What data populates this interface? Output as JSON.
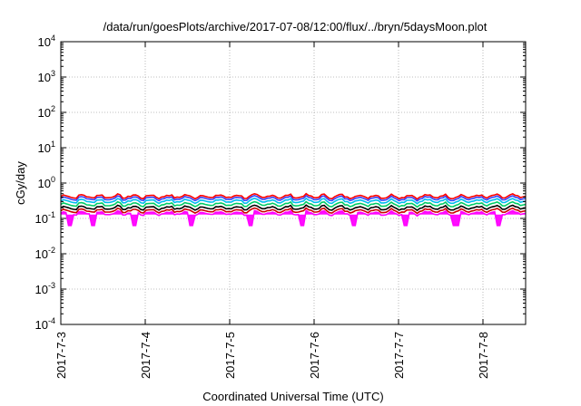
{
  "chart_data": {
    "type": "line",
    "title": "/data/run/goesPlots/archive/2017-07-08/12:00/flux/../bryn/5daysMoon.plot",
    "xlabel": "Coordinated Universal Time (UTC)",
    "ylabel": "cGy/day",
    "y_scale": "log",
    "ylim": [
      0.0001,
      10000
    ],
    "y_ticks": [
      {
        "value": 0.0001,
        "base": "10",
        "exp": "-4"
      },
      {
        "value": 0.001,
        "base": "10",
        "exp": "-3"
      },
      {
        "value": 0.01,
        "base": "10",
        "exp": "-2"
      },
      {
        "value": 0.1,
        "base": "10",
        "exp": "-1"
      },
      {
        "value": 1,
        "base": "10",
        "exp": "0"
      },
      {
        "value": 10,
        "base": "10",
        "exp": "1"
      },
      {
        "value": 100,
        "base": "10",
        "exp": "2"
      },
      {
        "value": 1000,
        "base": "10",
        "exp": "3"
      },
      {
        "value": 10000,
        "base": "10",
        "exp": "4"
      }
    ],
    "x_range": [
      "2017-07-03",
      "2017-07-08 12:00"
    ],
    "x_ticks": [
      "2017-7-3",
      "2017-7-4",
      "2017-7-5",
      "2017-7-6",
      "2017-7-7",
      "2017-7-8"
    ],
    "grid": true,
    "series": [
      {
        "color": "#ff00ff",
        "level": 0.14,
        "fill": true
      },
      {
        "color": "#cc0000",
        "level": 0.165
      },
      {
        "color": "#000000",
        "level": 0.2
      },
      {
        "color": "#00cc66",
        "level": 0.25
      },
      {
        "color": "#00bbee",
        "level": 0.31
      },
      {
        "color": "#3344ff",
        "level": 0.37
      },
      {
        "color": "#ff0000",
        "level": 0.42
      }
    ]
  }
}
